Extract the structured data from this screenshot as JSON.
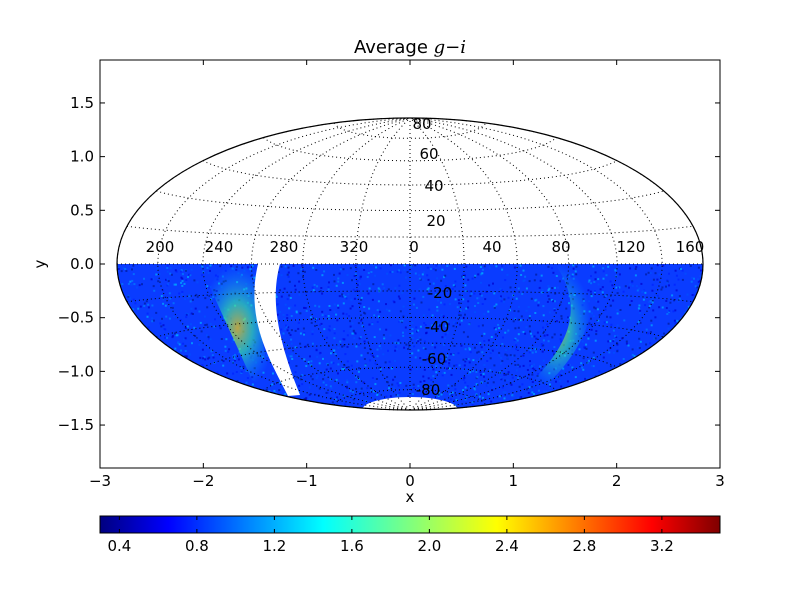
{
  "chart_data": {
    "type": "heatmap",
    "projection": "hammer-aitoff (full sky, southern hemisphere data)",
    "title_text": "Average ",
    "title_math": "g−i",
    "xlabel": "x",
    "ylabel": "y",
    "xlim": [
      -3,
      3
    ],
    "ylim": [
      -1.9,
      1.9
    ],
    "x_ticks": [
      -3,
      -2,
      -1,
      0,
      1,
      2,
      3
    ],
    "x_tick_labels": [
      "−3",
      "−2",
      "−1",
      "0",
      "1",
      "2",
      "3"
    ],
    "y_ticks": [
      1.5,
      1.0,
      0.5,
      0.0,
      -0.5,
      -1.0,
      -1.5
    ],
    "y_tick_labels": [
      "1.5",
      "1.0",
      "0.5",
      "0.0",
      "−0.5",
      "−1.0",
      "−1.5"
    ],
    "longitude_labels": [
      "200",
      "240",
      "280",
      "320",
      "0",
      "40",
      "80",
      "120",
      "160"
    ],
    "latitude_labels": [
      "80",
      "60",
      "40",
      "20",
      "-20",
      "-40",
      "-60",
      "-80"
    ],
    "grid": true,
    "colorbar": {
      "orientation": "horizontal",
      "range": [
        0.3,
        3.5
      ],
      "tick_labels": [
        "0.4",
        "0.8",
        "1.2",
        "1.6",
        "2.0",
        "2.4",
        "2.8",
        "3.2"
      ],
      "colormap": "jet",
      "colors": [
        "#00007f",
        "#0000ff",
        "#007fff",
        "#00ffff",
        "#7fff7f",
        "#ffff00",
        "#ff7f00",
        "#ff0000",
        "#7f0000"
      ]
    },
    "typical_value": 0.8,
    "high_value_regions": [
      "Galactic plane band near x≈-1.7",
      "Galactic plane band near x≈1.5"
    ]
  }
}
